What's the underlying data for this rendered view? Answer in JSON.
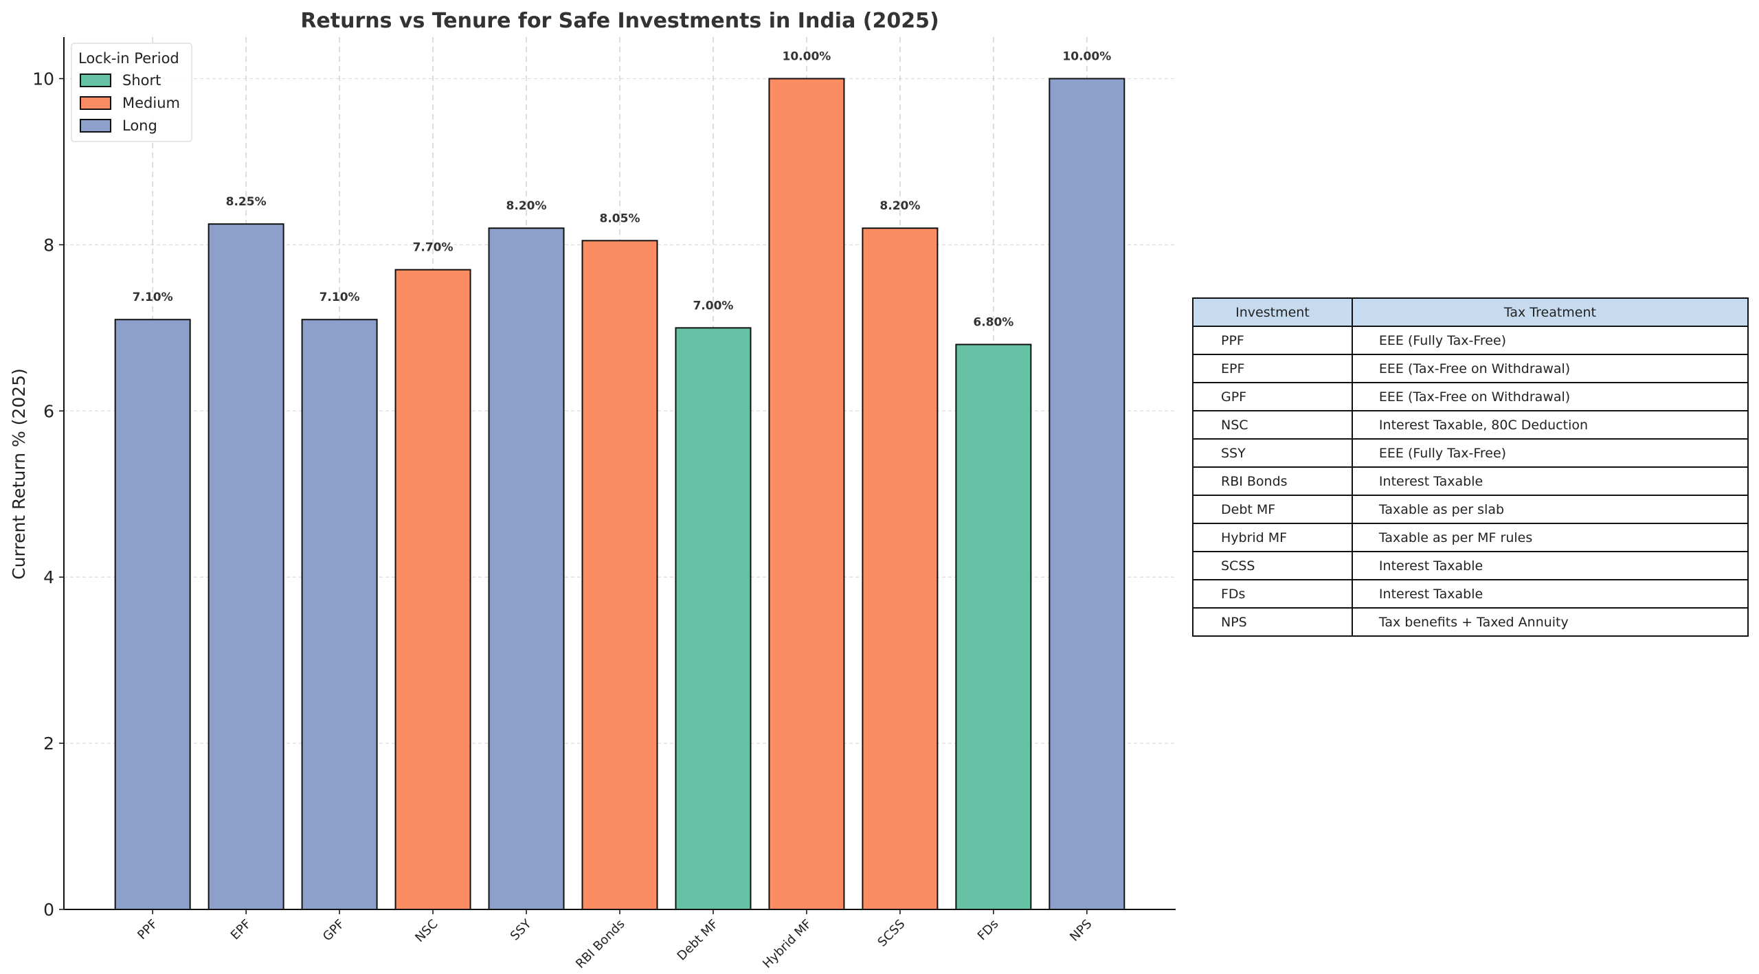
{
  "chart_data": {
    "type": "bar",
    "title": "Returns vs Tenure for Safe Investments in India (2025)",
    "xlabel": "",
    "ylabel": "Current Return % (2025)",
    "ylim": [
      0,
      10.5
    ],
    "yticks": [
      0,
      2,
      4,
      6,
      8,
      10
    ],
    "grid": true,
    "categories": [
      "PPF",
      "EPF",
      "GPF",
      "NSC",
      "SSY",
      "RBI Bonds",
      "Debt MF",
      "Hybrid MF",
      "SCSS",
      "FDs",
      "NPS"
    ],
    "values": [
      7.1,
      8.25,
      7.1,
      7.7,
      8.2,
      8.05,
      7.0,
      10.0,
      8.2,
      6.8,
      10.0
    ],
    "data_labels": [
      "7.10%",
      "8.25%",
      "7.10%",
      "7.70%",
      "8.20%",
      "8.05%",
      "7.00%",
      "10.00%",
      "8.20%",
      "6.80%",
      "10.00%"
    ],
    "lock_in": [
      "Long",
      "Long",
      "Long",
      "Medium",
      "Long",
      "Medium",
      "Short",
      "Medium",
      "Medium",
      "Short",
      "Long"
    ],
    "legend": {
      "title": "Lock-in Period",
      "placement": "top-left",
      "entries": [
        {
          "name": "Short",
          "color": "#66c2a5"
        },
        {
          "name": "Medium",
          "color": "#fc8d62"
        },
        {
          "name": "Long",
          "color": "#8da0cb"
        }
      ]
    }
  },
  "table": {
    "headers": [
      "Investment",
      "Tax Treatment"
    ],
    "rows": [
      [
        "PPF",
        "EEE (Fully Tax-Free)"
      ],
      [
        "EPF",
        "EEE (Tax-Free on Withdrawal)"
      ],
      [
        "GPF",
        "EEE (Tax-Free on Withdrawal)"
      ],
      [
        "NSC",
        "Interest Taxable, 80C Deduction"
      ],
      [
        "SSY",
        "EEE (Fully Tax-Free)"
      ],
      [
        "RBI Bonds",
        "Interest Taxable"
      ],
      [
        "Debt MF",
        "Taxable as per slab"
      ],
      [
        "Hybrid MF",
        "Taxable as per MF rules"
      ],
      [
        "SCSS",
        "Interest Taxable"
      ],
      [
        "FDs",
        "Interest Taxable"
      ],
      [
        "NPS",
        "Tax benefits + Taxed Annuity"
      ]
    ],
    "header_color": "#c6dbef"
  }
}
